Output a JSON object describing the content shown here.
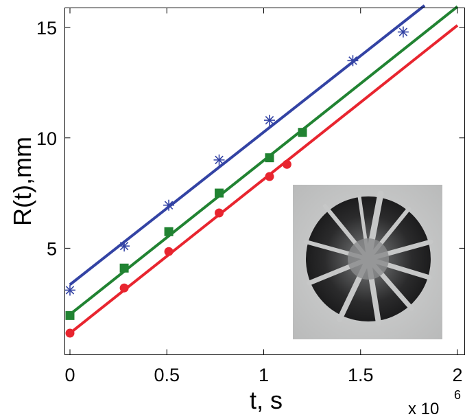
{
  "chart_data": {
    "type": "scatter",
    "title": "",
    "xlabel": "t, s",
    "ylabel": "R(t),mm",
    "x_multiplier_label": "x 10",
    "x_multiplier_exponent": "6",
    "xlim": [
      0,
      2.0
    ],
    "ylim": [
      0,
      16.0
    ],
    "xticks": [
      0,
      0.5,
      1,
      1.5,
      2
    ],
    "xtick_labels": [
      "0",
      "0.5",
      "1",
      "1.5",
      "2"
    ],
    "yticks": [
      5,
      10,
      15
    ],
    "ytick_labels": [
      "5",
      "10",
      "15"
    ],
    "grid": false,
    "legend": "none",
    "inset_image": "grey crack-pattern photograph, lower right",
    "series": [
      {
        "color": "#3343a4",
        "marker": "asterisk",
        "points": [
          [
            0,
            3.1
          ],
          [
            0.28,
            5.1
          ],
          [
            0.51,
            6.95
          ],
          [
            0.77,
            9.0
          ],
          [
            1.03,
            10.8
          ],
          [
            1.46,
            13.5
          ],
          [
            1.72,
            14.8
          ]
        ],
        "fit": [
          [
            0,
            3.35
          ],
          [
            1.83,
            16.0
          ]
        ]
      },
      {
        "color": "#218332",
        "marker": "square",
        "points": [
          [
            0,
            1.95
          ],
          [
            0.28,
            4.1
          ],
          [
            0.51,
            5.75
          ],
          [
            0.77,
            7.5
          ],
          [
            1.03,
            9.1
          ],
          [
            1.2,
            10.25
          ]
        ],
        "fit": [
          [
            0,
            2.0
          ],
          [
            2.0,
            15.95
          ]
        ]
      },
      {
        "color": "#e8252f",
        "marker": "circle",
        "points": [
          [
            0,
            1.15
          ],
          [
            0.28,
            3.2
          ],
          [
            0.51,
            4.85
          ],
          [
            0.77,
            6.6
          ],
          [
            1.03,
            8.25
          ],
          [
            1.12,
            8.8
          ]
        ],
        "fit": [
          [
            0,
            1.15
          ],
          [
            2.0,
            15.1
          ]
        ]
      }
    ]
  }
}
